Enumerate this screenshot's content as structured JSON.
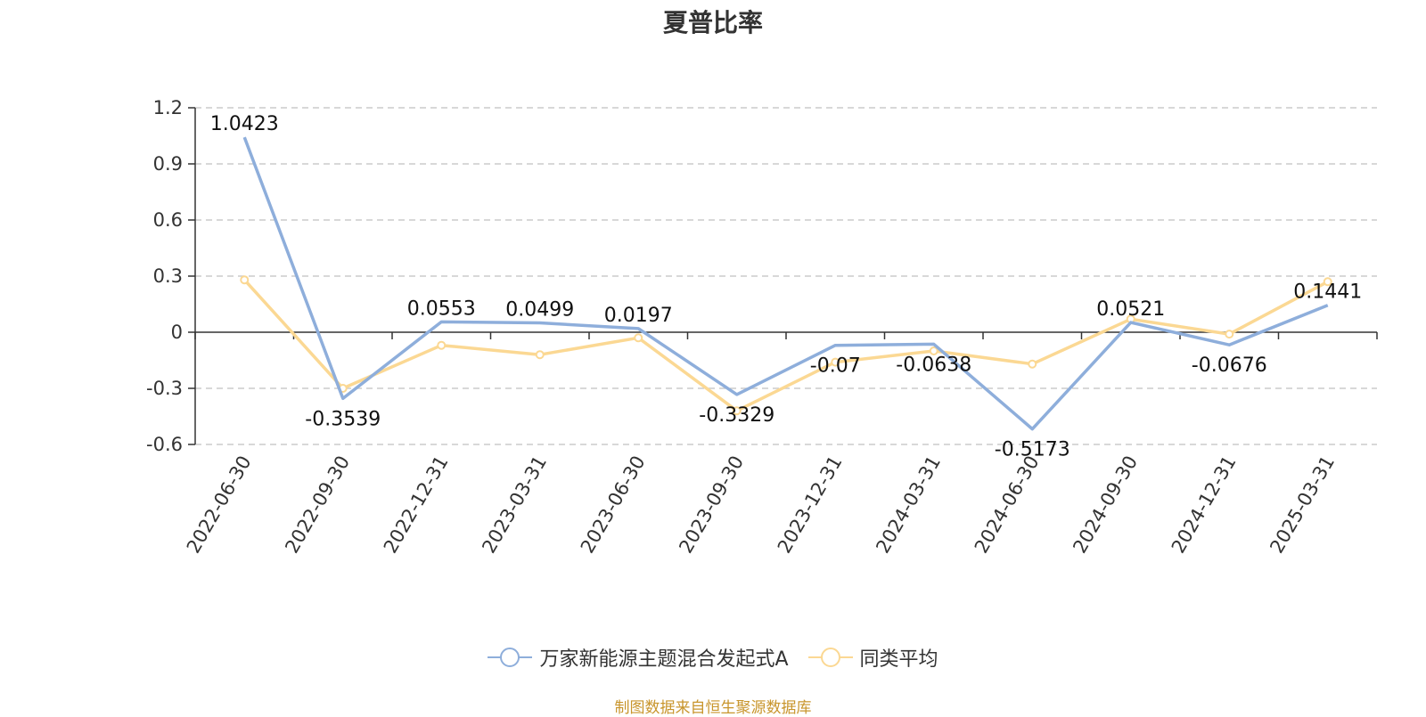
{
  "chart_data": {
    "type": "line",
    "title": "夏普比率",
    "categories": [
      "2022-06-30",
      "2022-09-30",
      "2022-12-31",
      "2023-03-31",
      "2023-06-30",
      "2023-09-30",
      "2023-12-31",
      "2024-03-31",
      "2024-06-30",
      "2024-09-30",
      "2024-12-31",
      "2025-03-31"
    ],
    "series": [
      {
        "name": "万家新能源主题混合发起式A",
        "color": "#8eaedb",
        "values": [
          1.0423,
          -0.3539,
          0.0553,
          0.0499,
          0.0197,
          -0.3329,
          -0.07,
          -0.0638,
          -0.5173,
          0.0521,
          -0.0676,
          0.1441
        ],
        "labels": [
          "1.0423",
          "-0.3539",
          "0.0553",
          "0.0499",
          "0.0197",
          "-0.3329",
          "-0.07",
          "-0.0638",
          "-0.5173",
          "0.0521",
          "-0.0676",
          "0.1441"
        ]
      },
      {
        "name": "同类平均",
        "color": "#fbd893",
        "values": [
          0.28,
          -0.3,
          -0.07,
          -0.12,
          -0.03,
          -0.42,
          -0.16,
          -0.1,
          -0.17,
          0.07,
          -0.01,
          0.27
        ]
      }
    ],
    "yticks": [
      1.2,
      0.9,
      0.6,
      0.3,
      0,
      -0.3,
      -0.6
    ],
    "ytick_labels": [
      "1.2",
      "0.9",
      "0.6",
      "0.3",
      "0",
      "-0.3",
      "-0.6"
    ],
    "ylim": [
      -0.6,
      1.2
    ],
    "grid": true,
    "legend_position": "bottom-center"
  },
  "footer": {
    "source": "制图数据来自恒生聚源数据库"
  }
}
